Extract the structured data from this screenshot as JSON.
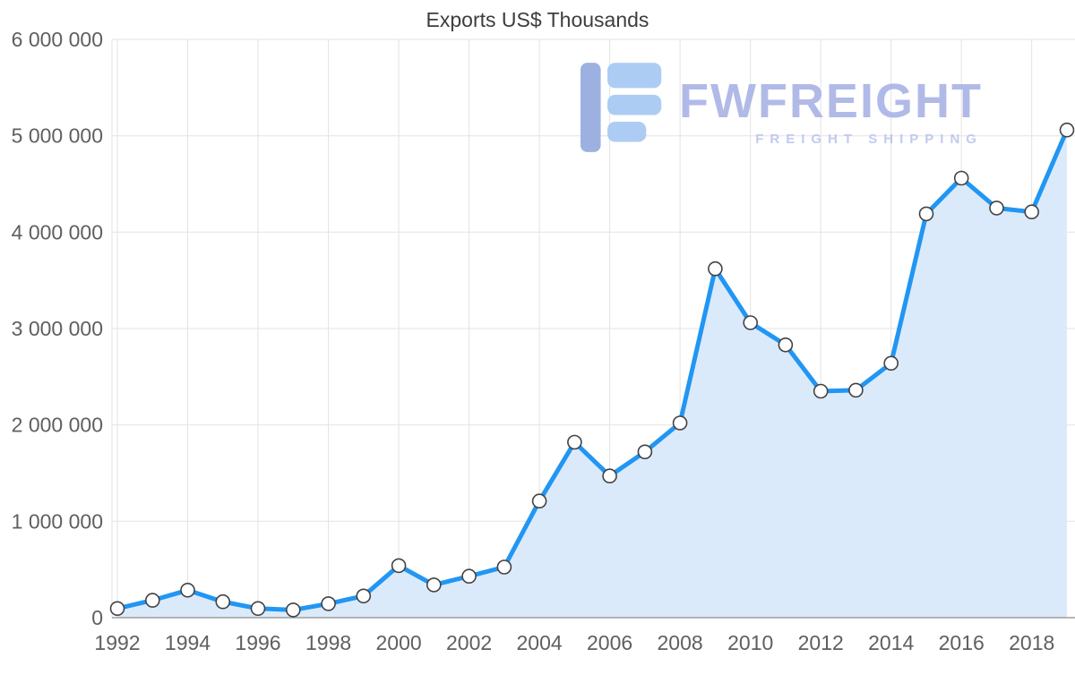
{
  "brand": {
    "name": "FWFREIGHT",
    "tagline": "FREIGHT SHIPPING"
  },
  "chart_data": {
    "type": "area",
    "title": "Exports US$ Thousands",
    "x": [
      1992,
      1993,
      1994,
      1995,
      1996,
      1997,
      1998,
      1999,
      2000,
      2001,
      2002,
      2003,
      2004,
      2005,
      2006,
      2007,
      2008,
      2009,
      2010,
      2011,
      2012,
      2013,
      2014,
      2015,
      2016,
      2017,
      2018,
      2019
    ],
    "series": [
      {
        "name": "Exports US$ Thousands",
        "values": [
          95000,
          180000,
          285000,
          165000,
          95000,
          80000,
          145000,
          225000,
          540000,
          340000,
          430000,
          525000,
          1210000,
          1820000,
          1470000,
          1720000,
          2020000,
          3620000,
          3060000,
          2830000,
          2350000,
          2360000,
          2640000,
          4190000,
          4560000,
          4250000,
          4210000,
          5060000
        ]
      }
    ],
    "ylim": [
      0,
      6000000
    ],
    "yticks": [
      {
        "value": 0,
        "label": "0"
      },
      {
        "value": 1000000,
        "label": "1 000 000"
      },
      {
        "value": 2000000,
        "label": "2 000 000"
      },
      {
        "value": 3000000,
        "label": "3 000 000"
      },
      {
        "value": 4000000,
        "label": "4 000 000"
      },
      {
        "value": 5000000,
        "label": "5 000 000"
      },
      {
        "value": 6000000,
        "label": "6 000 000"
      }
    ],
    "xticks": [
      {
        "year": 1992,
        "label": "1992"
      },
      {
        "year": 1994,
        "label": "1994"
      },
      {
        "year": 1996,
        "label": "1996"
      },
      {
        "year": 1998,
        "label": "1998"
      },
      {
        "year": 2000,
        "label": "2000"
      },
      {
        "year": 2002,
        "label": "2002"
      },
      {
        "year": 2004,
        "label": "2004"
      },
      {
        "year": 2006,
        "label": "2006"
      },
      {
        "year": 2008,
        "label": "2008"
      },
      {
        "year": 2010,
        "label": "2010"
      },
      {
        "year": 2012,
        "label": "2012"
      },
      {
        "year": 2014,
        "label": "2014"
      },
      {
        "year": 2016,
        "label": "2016"
      },
      {
        "year": 2018,
        "label": "2018"
      }
    ],
    "grid": true,
    "legend": "none",
    "colors": {
      "line": "#2196f3",
      "fill": "#dbeafb",
      "marker_fill": "#ffffff",
      "marker_stroke": "#424242",
      "grid": "#e3e3e3",
      "axis": "#9e9e9e",
      "tick_text": "#5f5f5f",
      "title_text": "#3d3d3d",
      "brand_text": "#a9b3e5",
      "brand_tagline": "#bcc6ee",
      "brand_icon_dark": "#93a9de",
      "brand_icon_light": "#a5c7f3"
    }
  }
}
